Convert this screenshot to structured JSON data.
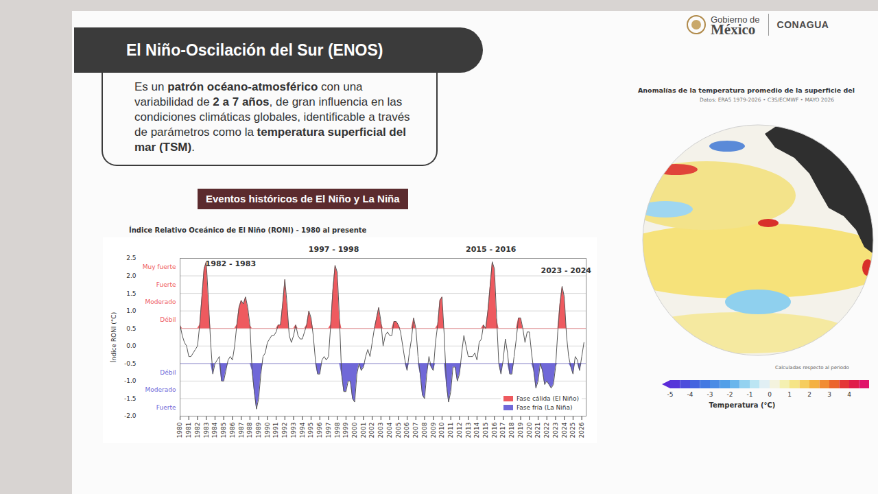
{
  "slide": {
    "logos": {
      "government": [
        "Gobierno de",
        "México"
      ],
      "agency": "CONAGUA"
    },
    "title": "El Niño-Oscilación del Sur (ENOS)",
    "description": [
      {
        "text": "Es un ",
        "bold": false
      },
      {
        "text": "patrón océano-atmosférico",
        "bold": true
      },
      {
        "text": " con una variabilidad de ",
        "bold": false
      },
      {
        "text": "2 a 7 años",
        "bold": true
      },
      {
        "text": ", de gran influencia en las condiciones climáticas globales, identificable a través de parámetros como la ",
        "bold": false
      },
      {
        "text": "temperatura superficial del mar (TSM)",
        "bold": true
      },
      {
        "text": ".",
        "bold": false
      }
    ],
    "section_title": "Eventos históricos de El Niño y La Niña",
    "map": {
      "title": "Anomalías de la temperatura promedio de la superficie del",
      "subtitle": "Datos: ERA5 1979-2026 • C3S/ECMWF • MAYO 2026",
      "note": "Calculadas respecto al periodo",
      "colorbar": {
        "range": [
          -5,
          5
        ],
        "ticks": [
          -5,
          -4,
          -3,
          -2,
          -1,
          0,
          1,
          2,
          3,
          4
        ],
        "label": "Temperatura (°C)"
      }
    }
  },
  "chart_data": {
    "type": "line",
    "title": "Índice Relativo Oceánico de El Niño (RONI) - 1980 al presente",
    "y_label": "Índice RONI (°C)",
    "color": "#555555",
    "x": [
      1980,
      1980.25,
      1980.5,
      1980.75,
      1981,
      1981.25,
      1981.5,
      1981.75,
      1982,
      1982.25,
      1982.5,
      1982.75,
      1983,
      1983.25,
      1983.5,
      1983.75,
      1984,
      1984.25,
      1984.5,
      1984.75,
      1985,
      1985.25,
      1985.5,
      1985.75,
      1986,
      1986.25,
      1986.5,
      1986.75,
      1987,
      1987.25,
      1987.5,
      1987.75,
      1988,
      1988.25,
      1988.5,
      1988.75,
      1989,
      1989.25,
      1989.5,
      1989.75,
      1990,
      1990.25,
      1990.5,
      1990.75,
      1991,
      1991.25,
      1991.5,
      1991.75,
      1992,
      1992.25,
      1992.5,
      1992.75,
      1993,
      1993.25,
      1993.5,
      1993.75,
      1994,
      1994.25,
      1994.5,
      1994.75,
      1995,
      1995.25,
      1995.5,
      1995.75,
      1996,
      1996.25,
      1996.5,
      1996.75,
      1997,
      1997.25,
      1997.5,
      1997.75,
      1998,
      1998.25,
      1998.5,
      1998.75,
      1999,
      1999.25,
      1999.5,
      1999.75,
      2000,
      2000.25,
      2000.5,
      2000.75,
      2001,
      2001.25,
      2001.5,
      2001.75,
      2002,
      2002.25,
      2002.5,
      2002.75,
      2003,
      2003.25,
      2003.5,
      2003.75,
      2004,
      2004.25,
      2004.5,
      2004.75,
      2005,
      2005.25,
      2005.5,
      2005.75,
      2006,
      2006.25,
      2006.5,
      2006.75,
      2007,
      2007.25,
      2007.5,
      2007.75,
      2008,
      2008.25,
      2008.5,
      2008.75,
      2009,
      2009.25,
      2009.5,
      2009.75,
      2010,
      2010.25,
      2010.5,
      2010.75,
      2011,
      2011.25,
      2011.5,
      2011.75,
      2012,
      2012.25,
      2012.5,
      2012.75,
      2013,
      2013.25,
      2013.5,
      2013.75,
      2014,
      2014.25,
      2014.5,
      2014.75,
      2015,
      2015.25,
      2015.5,
      2015.75,
      2016,
      2016.25,
      2016.5,
      2016.75,
      2017,
      2017.25,
      2017.5,
      2017.75,
      2018,
      2018.25,
      2018.5,
      2018.75,
      2019,
      2019.25,
      2019.5,
      2019.75,
      2020,
      2020.25,
      2020.5,
      2020.75,
      2021,
      2021.25,
      2021.5,
      2021.75,
      2022,
      2022.25,
      2022.5,
      2022.75,
      2023,
      2023.25,
      2023.5,
      2023.75,
      2024,
      2024.25,
      2024.5,
      2024.75,
      2025,
      2025.25,
      2025.5,
      2025.75,
      2026,
      2026.25
    ],
    "values": [
      0.6,
      0.3,
      0.1,
      0.0,
      -0.3,
      -0.3,
      -0.2,
      -0.1,
      0.0,
      0.6,
      1.4,
      2.2,
      2.4,
      1.3,
      0.1,
      -0.8,
      -0.5,
      -0.4,
      -0.3,
      -1.0,
      -1.0,
      -0.7,
      -0.4,
      -0.3,
      -0.4,
      0.0,
      0.6,
      1.1,
      1.3,
      1.2,
      1.4,
      1.1,
      0.6,
      -0.7,
      -1.3,
      -1.8,
      -1.5,
      -0.8,
      -0.3,
      -0.2,
      0.1,
      0.2,
      0.3,
      0.3,
      0.4,
      0.6,
      0.6,
      1.2,
      1.9,
      1.2,
      0.3,
      0.1,
      0.3,
      0.6,
      0.3,
      0.2,
      0.2,
      0.4,
      0.6,
      1.0,
      0.8,
      0.3,
      -0.4,
      -0.8,
      -0.8,
      -0.4,
      -0.3,
      -0.4,
      -0.3,
      0.6,
      1.6,
      2.3,
      2.1,
      0.8,
      -0.8,
      -1.3,
      -1.3,
      -1.0,
      -1.0,
      -1.5,
      -1.6,
      -0.8,
      -0.5,
      -0.7,
      -0.6,
      -0.3,
      -0.1,
      -0.3,
      0.1,
      0.5,
      0.8,
      1.1,
      0.7,
      0.0,
      0.3,
      0.4,
      0.3,
      0.3,
      0.7,
      0.7,
      0.6,
      0.4,
      0.0,
      -0.4,
      -0.7,
      -0.2,
      0.2,
      0.8,
      0.5,
      -0.3,
      -0.8,
      -1.4,
      -1.5,
      -0.8,
      -0.3,
      -0.6,
      -0.7,
      0.1,
      0.6,
      1.3,
      1.4,
      0.3,
      -1.1,
      -1.6,
      -1.3,
      -0.6,
      -0.6,
      -1.0,
      -0.8,
      -0.2,
      0.3,
      0.0,
      -0.3,
      -0.3,
      -0.3,
      -0.2,
      -0.4,
      0.1,
      0.2,
      0.6,
      0.5,
      1.0,
      1.7,
      2.4,
      2.2,
      0.8,
      -0.5,
      -0.8,
      -0.4,
      0.2,
      -0.2,
      -0.8,
      -0.8,
      -0.3,
      0.2,
      0.8,
      0.8,
      0.5,
      0.1,
      0.4,
      0.4,
      -0.2,
      -0.7,
      -1.2,
      -1.0,
      -0.5,
      -0.7,
      -1.1,
      -1.0,
      -1.1,
      -1.2,
      -1.1,
      -0.6,
      0.4,
      1.2,
      1.7,
      1.4,
      0.3,
      -0.3,
      -0.6,
      -0.8,
      -0.3,
      -0.4,
      -0.7,
      -0.3,
      0.1
    ],
    "phases": [
      {
        "name": "Fase cálida (El Niño)",
        "color": "#ee5a5f",
        "threshold": 0.5
      },
      {
        "name": "Fase fría (La Niña)",
        "color": "#7068d8",
        "threshold": -0.5
      }
    ],
    "intensity_labels": [
      {
        "label": "Muy fuerte",
        "value": 2.25
      },
      {
        "label": "Fuerte",
        "value": 1.75
      },
      {
        "label": "Moderado",
        "value": 1.25
      },
      {
        "label": "Débil",
        "value": 0.75
      },
      {
        "label": "Débil",
        "value": -0.75
      },
      {
        "label": "Moderado",
        "value": -1.25
      },
      {
        "label": "Fuerte",
        "value": -1.75
      }
    ],
    "annotations": [
      {
        "text": "1982 - 1983",
        "x": 1985.8,
        "y": 2.35
      },
      {
        "text": "1997 - 1998",
        "x": 1997.6,
        "y": 2.75
      },
      {
        "text": "2015 - 2016",
        "x": 2015.6,
        "y": 2.75
      },
      {
        "text": "2023 - 2024",
        "x": 2024.2,
        "y": 2.15
      }
    ],
    "xlim": [
      1980,
      2026.5
    ],
    "xticks": [
      1980,
      1981,
      1982,
      1983,
      1984,
      1985,
      1986,
      1987,
      1988,
      1989,
      1990,
      1991,
      1992,
      1993,
      1994,
      1995,
      1996,
      1997,
      1998,
      1999,
      2000,
      2001,
      2002,
      2003,
      2004,
      2005,
      2006,
      2007,
      2008,
      2009,
      2010,
      2011,
      2012,
      2013,
      2014,
      2015,
      2016,
      2017,
      2018,
      2019,
      2020,
      2021,
      2022,
      2023,
      2024,
      2025,
      2026
    ],
    "ylim": [
      -2,
      2.5
    ],
    "yticks": [
      {
        "value": -2,
        "label": "-2.0"
      },
      -1.5,
      {
        "value": -1,
        "label": "-1.0"
      },
      -0.5,
      {
        "value": 0,
        "label": "0.0"
      },
      0.5,
      {
        "value": 1,
        "label": "1.0"
      },
      1.5,
      {
        "value": 2,
        "label": "2.0"
      },
      2.5
    ],
    "grid": true,
    "legend": "lower right"
  }
}
